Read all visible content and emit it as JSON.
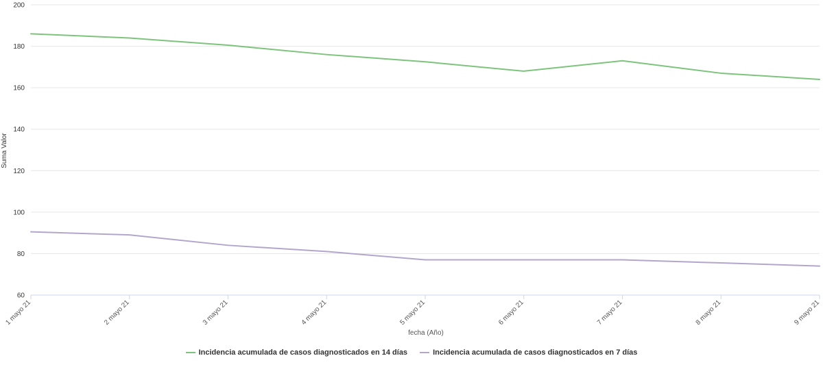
{
  "chart_data": {
    "type": "line",
    "title": "",
    "xlabel": "fecha (Año)",
    "ylabel": "Suma Valor",
    "ylim": [
      60,
      200
    ],
    "yticks": [
      60,
      80,
      100,
      120,
      140,
      160,
      180,
      200
    ],
    "categories": [
      "1 mayo 21",
      "2 mayo 21",
      "3 mayo 21",
      "4 mayo 21",
      "5 mayo 21",
      "6 mayo 21",
      "7 mayo 21",
      "8 mayo 21",
      "9 mayo 21"
    ],
    "grid": true,
    "legend_position": "bottom",
    "series": [
      {
        "name": "Incidencia acumulada de casos diagnosticados en 14 días",
        "color": "#7cc47b",
        "values": [
          186,
          184,
          180.5,
          176,
          172.5,
          168,
          173,
          167,
          164
        ]
      },
      {
        "name": "Incidencia acumulada de casos diagnosticados en 7 días",
        "color": "#b3a6cc",
        "values": [
          90.5,
          89,
          84,
          81,
          77,
          77,
          77,
          75.5,
          74
        ]
      }
    ]
  }
}
